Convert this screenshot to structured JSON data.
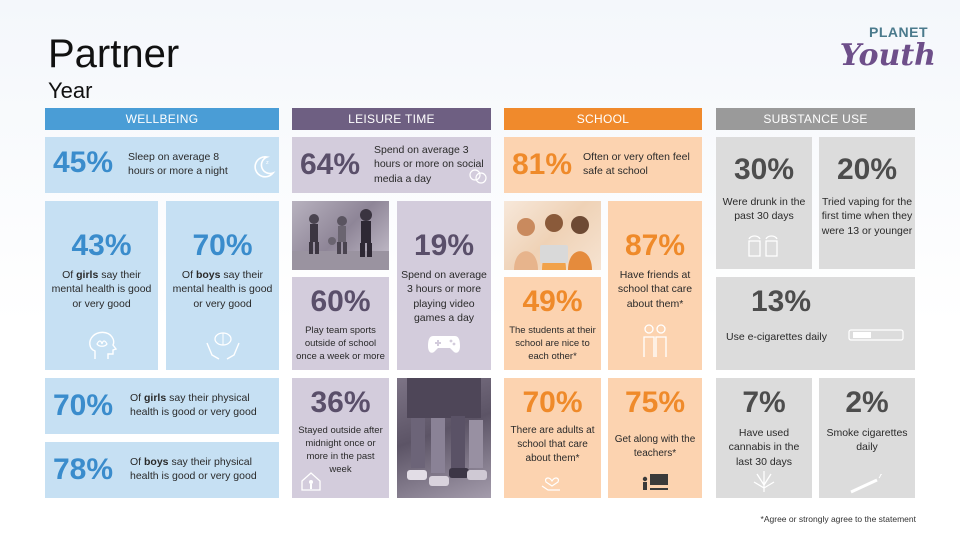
{
  "page": {
    "title": "Partner",
    "subtitle": "Year"
  },
  "logo": {
    "planet": "PLANET",
    "youth": "Youth"
  },
  "sections": {
    "wellbeing": "WELLBEING",
    "leisure": "LEISURE TIME",
    "school": "SCHOOL",
    "substance": "SUBSTANCE USE"
  },
  "stats": {
    "sleep": {
      "pct": "45%",
      "text": "Sleep on average 8 hours or more a night"
    },
    "girls_mental": {
      "pct": "43%",
      "pre": "Of ",
      "bold": "girls",
      "post": " say their mental health is good or very good"
    },
    "boys_mental": {
      "pct": "70%",
      "pre": "Of ",
      "bold": "boys",
      "post": " say their mental health is good or very good"
    },
    "girls_physical": {
      "pct": "70%",
      "pre": "Of ",
      "bold": "girls",
      "post": " say their physical health is good or very good"
    },
    "boys_physical": {
      "pct": "78%",
      "pre": "Of ",
      "bold": "boys",
      "post": " say their physical health is good or very good"
    },
    "social_media": {
      "pct": "64%",
      "text": "Spend on average 3 hours or more on social media a day"
    },
    "video_games": {
      "pct": "19%",
      "text": "Spend on average 3 hours or more playing video games a day"
    },
    "team_sports": {
      "pct": "60%",
      "text": "Play team sports outside of school once a week or more"
    },
    "outside_midnight": {
      "pct": "36%",
      "text": "Stayed outside after midnight once or more in the past week"
    },
    "safe_school": {
      "pct": "81%",
      "text": "Often or very often feel safe at school"
    },
    "friends_care": {
      "pct": "87%",
      "text": "Have friends at school that care about them*"
    },
    "students_nice": {
      "pct": "49%",
      "text": "The students at their school are nice to each other*"
    },
    "adults_care": {
      "pct": "70%",
      "text": "There are adults at school that care about them*"
    },
    "teachers": {
      "pct": "75%",
      "text": "Get along with the teachers*"
    },
    "drunk": {
      "pct": "30%",
      "text": "Were drunk in the past 30 days"
    },
    "vaping": {
      "pct": "20%",
      "text": "Tried vaping for the first time when they were 13 or younger"
    },
    "ecig": {
      "pct": "13%",
      "text": "Use e-cigarettes daily"
    },
    "cannabis": {
      "pct": "7%",
      "text": "Have used cannabis in the last 30 days"
    },
    "smoke": {
      "pct": "2%",
      "text": "Smoke cigarettes daily"
    }
  },
  "footnote": "*Agree or strongly agree to the statement",
  "colors": {
    "wellbeing": "#4a9dd6",
    "leisure": "#6e5f82",
    "school": "#f08a2c",
    "substance": "#9a9a9a"
  }
}
